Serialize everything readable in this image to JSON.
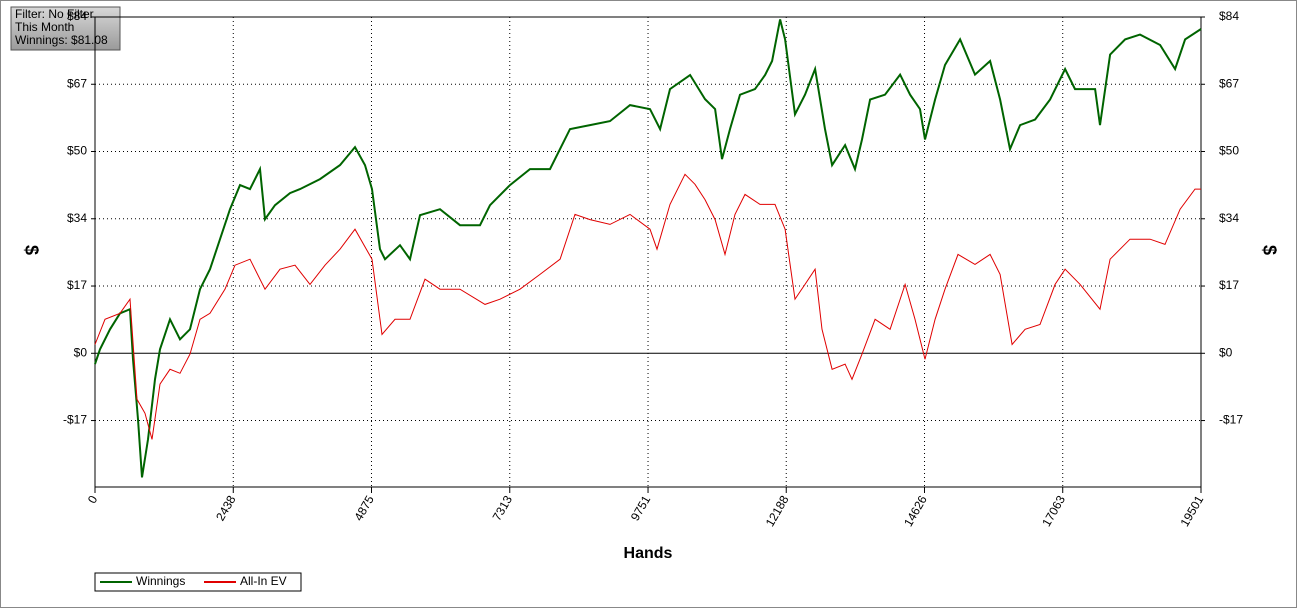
{
  "chart_data": {
    "type": "line",
    "annotations": [
      "Filter: No Filter",
      "This Month",
      "Winnings: $81.08"
    ],
    "xlabel": "Hands",
    "ylabel": "$",
    "xlim": [
      0,
      19501
    ],
    "xticks": [
      0,
      2438,
      4875,
      7313,
      9751,
      12188,
      14626,
      17063,
      19501
    ],
    "ylim": [
      -33.4,
      84
    ],
    "yticks": [
      {
        "value": -16.8,
        "label": "-$17"
      },
      {
        "value": 0,
        "label": "$0"
      },
      {
        "value": 16.8,
        "label": "$17"
      },
      {
        "value": 33.6,
        "label": "$34"
      },
      {
        "value": 50.4,
        "label": "$50"
      },
      {
        "value": 67.2,
        "label": "$67"
      },
      {
        "value": 84,
        "label": "$84"
      }
    ],
    "grid": true,
    "legend": "bottom-left",
    "series": [
      {
        "name": "Winnings",
        "color": "#006400",
        "x": [
          0,
          88,
          264,
          441,
          617,
          670,
          758,
          829,
          935,
          1058,
          1146,
          1322,
          1499,
          1675,
          1851,
          2028,
          2204,
          2380,
          2557,
          2733,
          2909,
          2998,
          3174,
          3438,
          3615,
          3967,
          4320,
          4585,
          4761,
          4884,
          5025,
          5114,
          5378,
          5554,
          5731,
          6083,
          6436,
          6789,
          6965,
          7318,
          7670,
          8023,
          8376,
          8728,
          9081,
          9434,
          9786,
          9963,
          10139,
          10492,
          10756,
          10933,
          11056,
          11197,
          11373,
          11638,
          11815,
          11938,
          12079,
          12167,
          12343,
          12519,
          12696,
          12872,
          12996,
          13225,
          13401,
          13524,
          13666,
          13930,
          14195,
          14371,
          14547,
          14635,
          14812,
          14988,
          15253,
          15517,
          15782,
          15958,
          16134,
          16311,
          16575,
          16840,
          17104,
          17280,
          17457,
          17633,
          17721,
          17898,
          18162,
          18426,
          18779,
          19044,
          19220,
          19501
        ],
        "values": [
          -2.7,
          1,
          6,
          10,
          11,
          -1.5,
          -16.5,
          -31,
          -21.5,
          -6.5,
          1,
          8.5,
          3.5,
          6,
          16,
          21,
          28.5,
          36,
          42,
          41,
          46,
          33.5,
          37,
          40,
          41,
          43.5,
          47,
          51.5,
          47,
          41,
          26,
          23.5,
          27,
          23.5,
          34.5,
          36,
          32,
          32,
          37,
          42,
          46,
          46,
          56,
          57,
          58,
          62,
          61,
          56,
          66,
          69.5,
          63.5,
          61,
          48.5,
          56,
          64.6,
          66,
          69.5,
          73,
          83.4,
          78.4,
          59.7,
          64.6,
          71,
          56,
          47,
          52,
          46,
          53.4,
          63.4,
          64.6,
          69.6,
          64.6,
          61,
          53.4,
          63.4,
          72,
          78.4,
          69.6,
          73,
          63.4,
          51,
          57,
          58.4,
          63.4,
          71,
          66,
          66,
          66,
          57,
          74.6,
          78.4,
          79.6,
          77,
          71,
          78.4,
          81
        ]
      },
      {
        "name": "All-In EV",
        "color": "#e00000",
        "x": [
          0,
          176,
          441,
          617,
          741,
          882,
          1005,
          1146,
          1322,
          1499,
          1675,
          1851,
          2028,
          2292,
          2469,
          2733,
          2998,
          3262,
          3527,
          3791,
          4056,
          4320,
          4585,
          4884,
          5061,
          5290,
          5554,
          5819,
          6083,
          6436,
          6877,
          7141,
          7494,
          7847,
          8200,
          8464,
          8728,
          9081,
          9434,
          9786,
          9910,
          10139,
          10403,
          10580,
          10756,
          10933,
          11109,
          11285,
          11461,
          11726,
          11990,
          12167,
          12343,
          12519,
          12696,
          12819,
          12996,
          13225,
          13348,
          13524,
          13754,
          14019,
          14283,
          14459,
          14635,
          14812,
          14988,
          15217,
          15517,
          15782,
          15958,
          16170,
          16399,
          16663,
          16928,
          17104,
          17369,
          17721,
          17898,
          18250,
          18603,
          18867,
          19132,
          19396,
          19501
        ],
        "values": [
          2.2,
          8.5,
          10,
          13.5,
          -11.5,
          -15,
          -21.5,
          -7.7,
          -4,
          -5,
          -0.2,
          8.5,
          10,
          16,
          22,
          23.5,
          16,
          21,
          22,
          17.2,
          22,
          26,
          31,
          23.5,
          4.7,
          8.5,
          8.5,
          18.5,
          16,
          16,
          12.2,
          13.5,
          16,
          19.7,
          23.5,
          34.7,
          33.4,
          32.2,
          34.7,
          31,
          26,
          37.2,
          44.7,
          42.2,
          38.4,
          33.4,
          24.7,
          34.7,
          39.7,
          37.2,
          37.2,
          31,
          13.5,
          17.2,
          21,
          6,
          -4,
          -2.7,
          -6.5,
          -0.2,
          8.5,
          6,
          17.2,
          8.5,
          -1.5,
          8.5,
          16,
          24.7,
          22.2,
          24.7,
          19.7,
          2.2,
          6,
          7.2,
          17.2,
          21,
          17.2,
          11,
          23.5,
          28.5,
          28.5,
          27.2,
          36,
          41,
          41
        ]
      }
    ]
  }
}
